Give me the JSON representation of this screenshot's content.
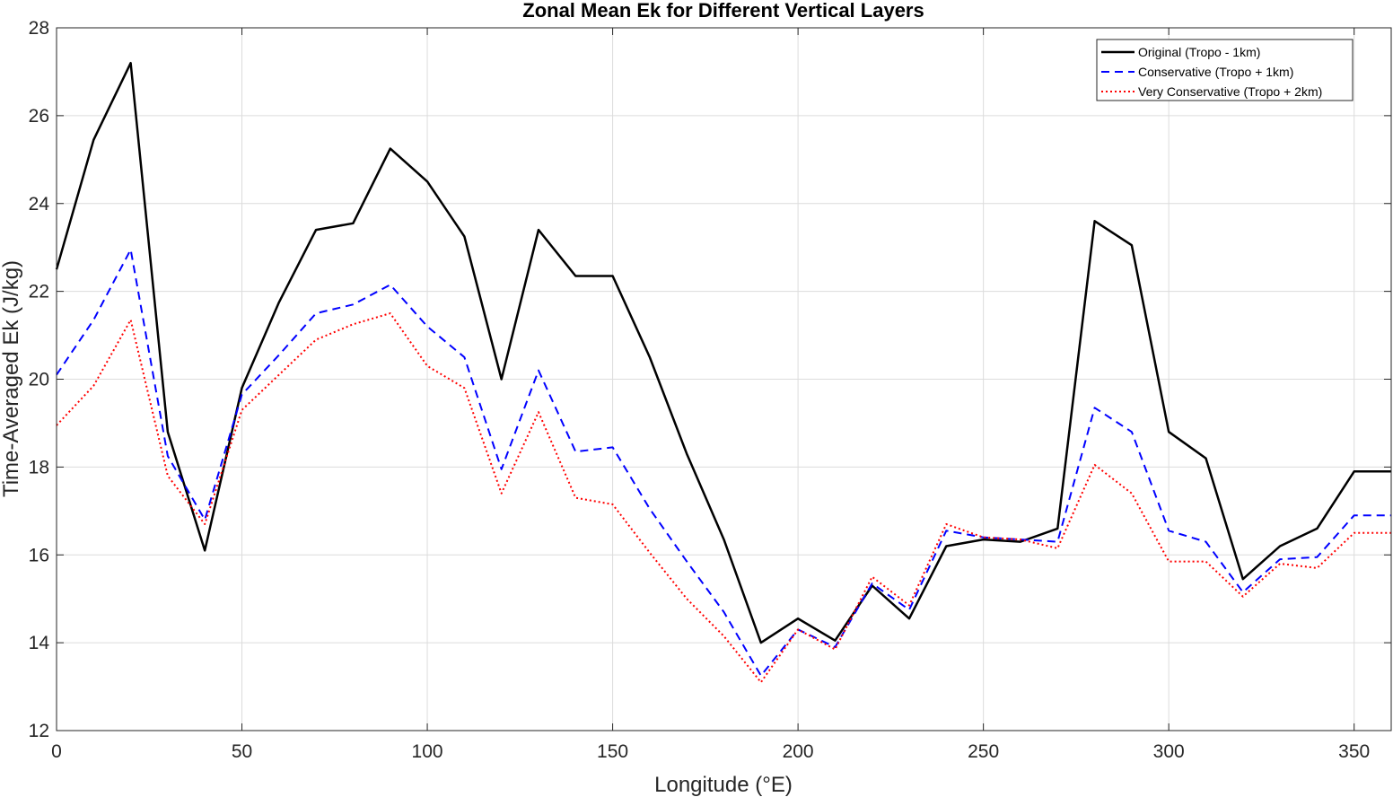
{
  "chart_data": {
    "type": "line",
    "title": "Zonal Mean Ek for Different Vertical Layers",
    "xlabel": "Longitude (°E)",
    "ylabel": "Time-Averaged Ek (J/kg)",
    "xlim": [
      0,
      360
    ],
    "ylim": [
      12,
      28
    ],
    "xticks": [
      0,
      50,
      100,
      150,
      200,
      250,
      300,
      350
    ],
    "yticks": [
      12,
      14,
      16,
      18,
      20,
      22,
      24,
      26,
      28
    ],
    "grid": true,
    "legend_position": "top-right",
    "x": [
      0,
      10,
      20,
      30,
      40,
      50,
      60,
      70,
      80,
      90,
      100,
      110,
      120,
      130,
      140,
      150,
      160,
      170,
      180,
      190,
      200,
      210,
      220,
      230,
      240,
      250,
      260,
      270,
      280,
      290,
      300,
      310,
      320,
      330,
      340,
      350,
      360
    ],
    "series": [
      {
        "name": "Original (Tropo - 1km)",
        "color": "#000000",
        "style": "solid",
        "values": [
          22.5,
          25.45,
          27.2,
          18.8,
          16.1,
          19.8,
          21.75,
          23.4,
          23.55,
          25.25,
          24.5,
          23.25,
          20.0,
          23.4,
          22.35,
          22.35,
          20.5,
          18.3,
          16.35,
          14.0,
          14.55,
          14.05,
          15.3,
          14.55,
          16.2,
          16.35,
          16.3,
          16.6,
          23.6,
          23.05,
          18.8,
          18.2,
          15.45,
          16.2,
          16.6,
          17.9,
          17.9
        ]
      },
      {
        "name": "Conservative (Tropo + 1km)",
        "color": "#0000ff",
        "style": "dashed",
        "values": [
          20.1,
          21.35,
          22.95,
          18.25,
          16.8,
          19.65,
          20.55,
          21.5,
          21.7,
          22.15,
          21.2,
          20.5,
          17.95,
          20.2,
          18.35,
          18.45,
          17.05,
          15.85,
          14.7,
          13.25,
          14.3,
          13.9,
          15.35,
          14.75,
          16.55,
          16.4,
          16.35,
          16.3,
          19.35,
          18.8,
          16.55,
          16.3,
          15.15,
          15.9,
          15.95,
          16.9,
          16.9
        ]
      },
      {
        "name": "Very Conservative (Tropo + 2km)",
        "color": "#ff0000",
        "style": "dotted",
        "values": [
          18.95,
          19.85,
          21.35,
          17.8,
          16.7,
          19.3,
          20.1,
          20.9,
          21.25,
          21.5,
          20.3,
          19.8,
          17.4,
          19.25,
          17.3,
          17.15,
          16.05,
          15.0,
          14.15,
          13.1,
          14.3,
          13.85,
          15.5,
          14.85,
          16.7,
          16.4,
          16.35,
          16.15,
          18.05,
          17.4,
          15.85,
          15.85,
          15.05,
          15.8,
          15.7,
          16.5,
          16.5
        ]
      }
    ]
  }
}
